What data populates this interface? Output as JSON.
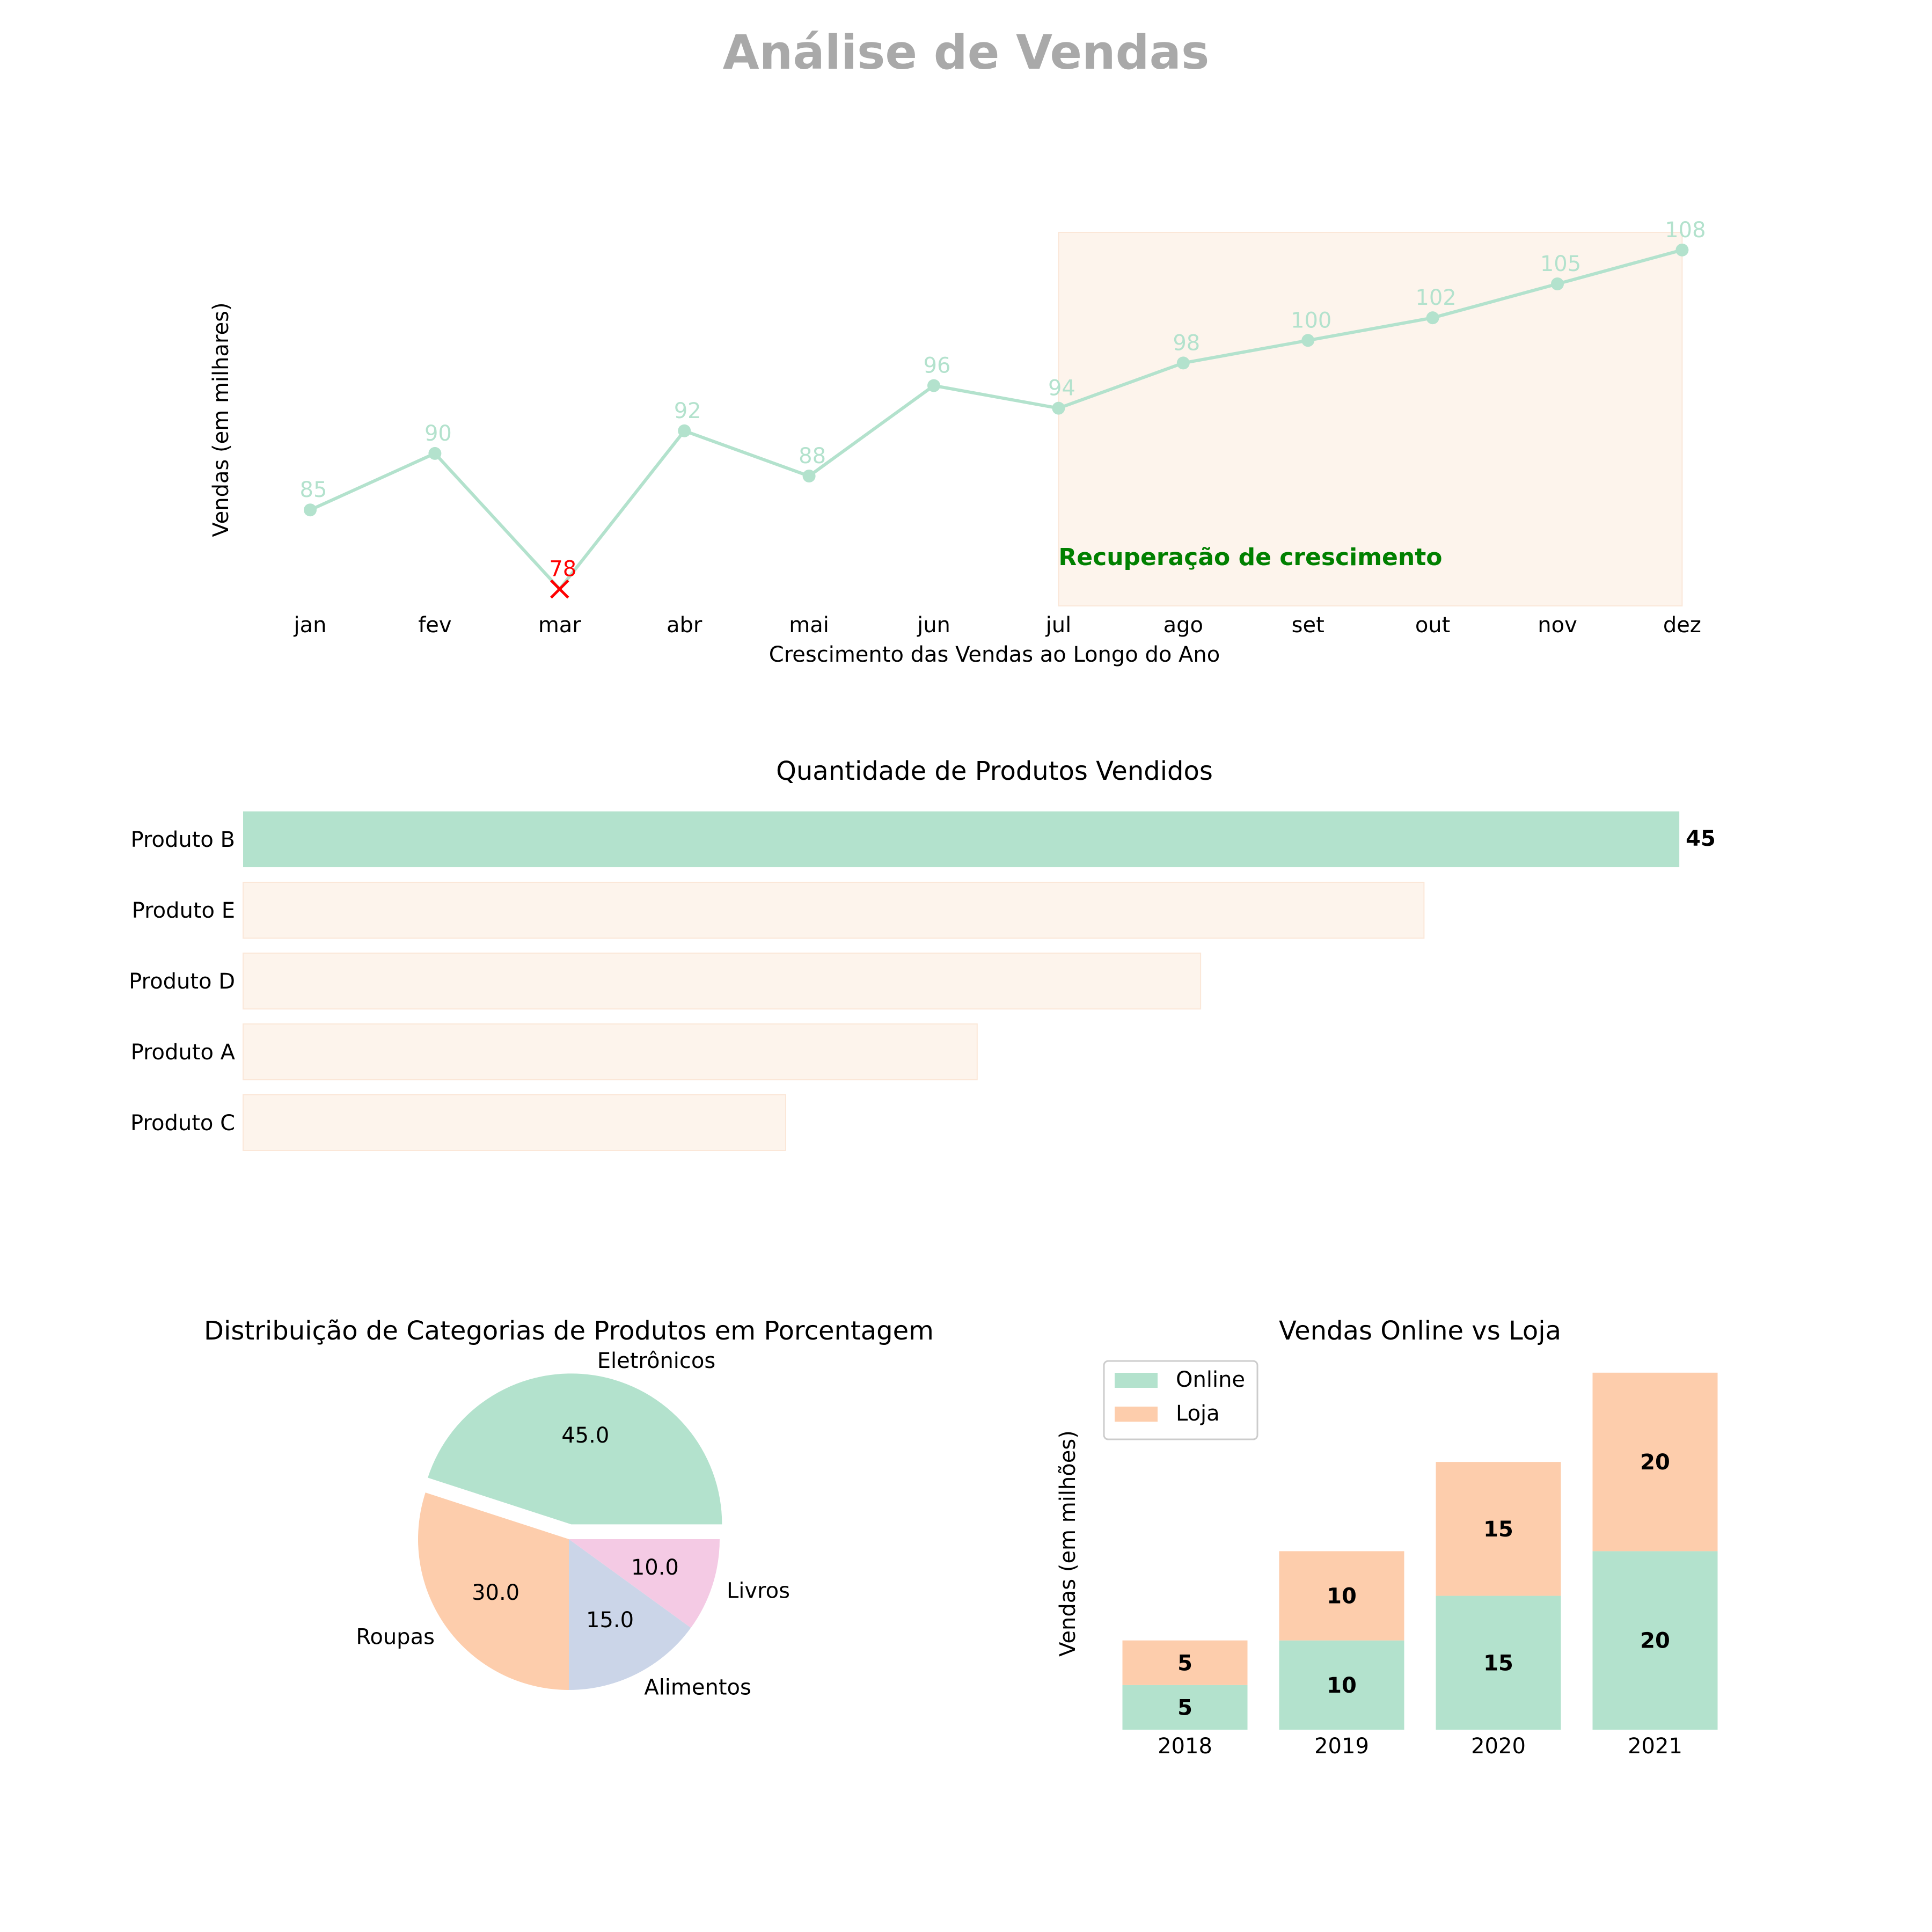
{
  "title": "Análise de Vendas",
  "colors": {
    "mint": "#b3e2cd",
    "peach": "#fdcdac",
    "lavender": "#cbd5e8",
    "pink": "#f4cae4",
    "highlight_fill": "#fdf4ec",
    "title_gray": "#a9a9a9",
    "red": "#ff0000",
    "green": "#008000",
    "text": "#000000"
  },
  "chart_data": [
    {
      "type": "line",
      "title": "",
      "xlabel": "Crescimento das Vendas ao Longo do Ano",
      "ylabel": "Vendas (em milhares)",
      "categories": [
        "jan",
        "fev",
        "mar",
        "abr",
        "mai",
        "jun",
        "jul",
        "ago",
        "set",
        "out",
        "nov",
        "dez"
      ],
      "values": [
        85,
        90,
        78,
        92,
        88,
        96,
        94,
        98,
        100,
        102,
        105,
        108
      ],
      "ylim": [
        77,
        109
      ],
      "min_marker": {
        "category": "mar",
        "value": 78,
        "color": "#ff0000",
        "symbol": "x"
      },
      "highlight_region": {
        "from": "jul",
        "to": "dez",
        "label": "Recuperação de crescimento"
      },
      "grid": false,
      "color": "#b3e2cd"
    },
    {
      "type": "bar",
      "orientation": "horizontal",
      "title": "Quantidade de Produtos Vendidos",
      "categories": [
        "Produto B",
        "Produto E",
        "Produto D",
        "Produto A",
        "Produto C"
      ],
      "values": [
        45,
        37,
        30,
        23,
        17
      ],
      "highlight": {
        "category": "Produto B",
        "label": "45"
      },
      "xlim": [
        0,
        48
      ],
      "grid": false
    },
    {
      "type": "pie",
      "title": "Distribuição de Categorias de Produtos em Porcentagem",
      "labels": [
        "Eletrônicos",
        "Roupas",
        "Alimentos",
        "Livros"
      ],
      "values": [
        45.0,
        30.0,
        15.0,
        10.0
      ],
      "value_labels": [
        "45.0",
        "30.0",
        "15.0",
        "10.0"
      ],
      "colors": [
        "#b3e2cd",
        "#fdcdac",
        "#cbd5e8",
        "#f4cae4"
      ],
      "explode": [
        "Eletrônicos"
      ]
    },
    {
      "type": "bar",
      "stacked": true,
      "title": "Vendas Online vs Loja",
      "ylabel": "Vendas (em milhões)",
      "categories": [
        "2018",
        "2019",
        "2020",
        "2021"
      ],
      "series": [
        {
          "name": "Online",
          "values": [
            5,
            10,
            15,
            20
          ],
          "color": "#b3e2cd"
        },
        {
          "name": "Loja",
          "values": [
            5,
            10,
            15,
            20
          ],
          "color": "#fdcdac"
        }
      ],
      "ylim": [
        0,
        40
      ],
      "legend": "top-left",
      "grid": false
    }
  ]
}
